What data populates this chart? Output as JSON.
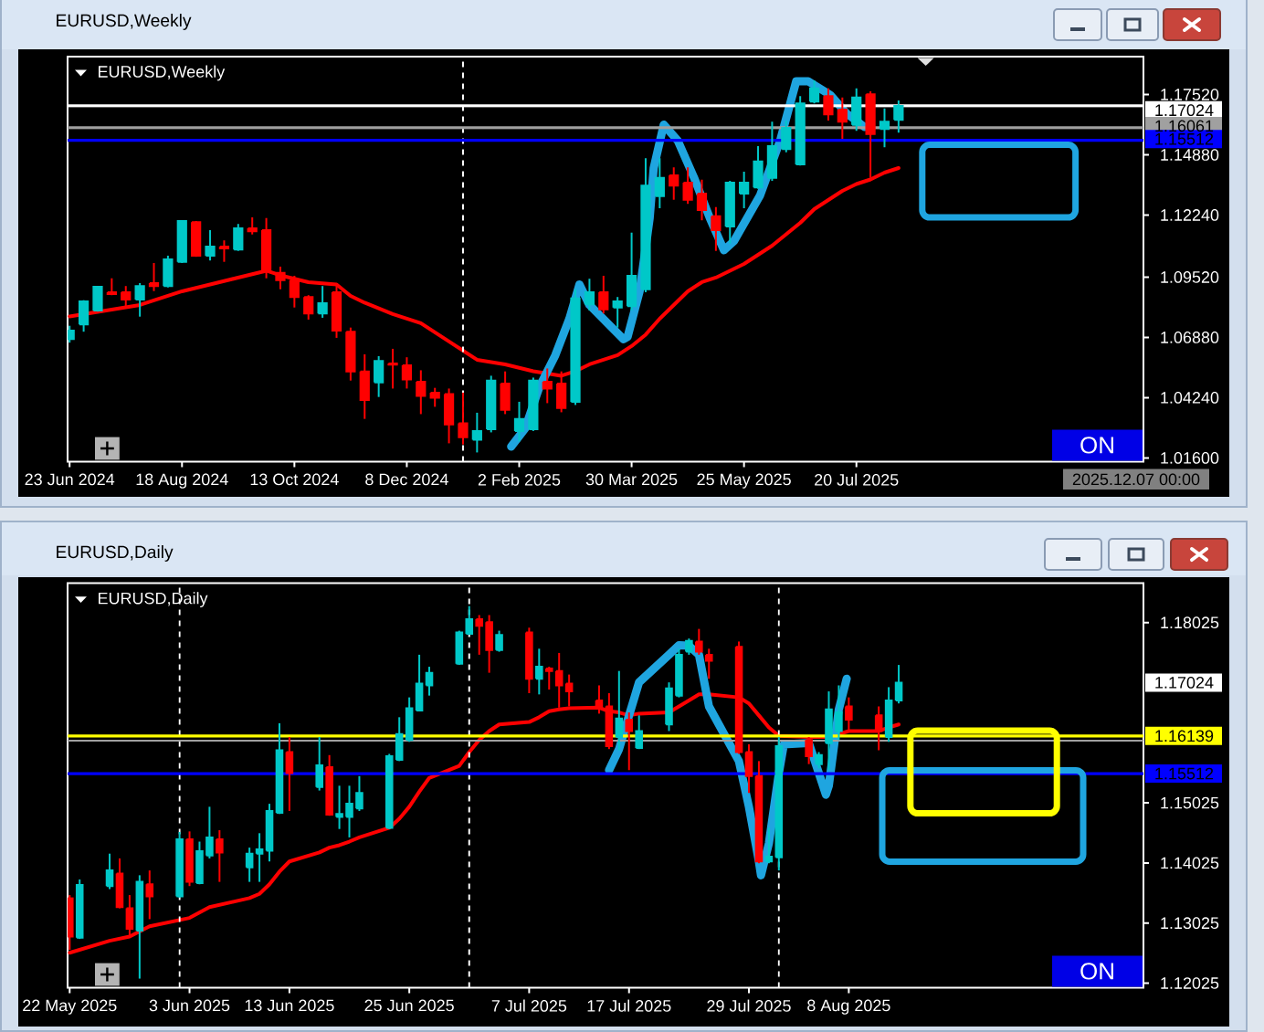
{
  "chart_data": [
    {
      "type": "candlestick",
      "title": "EURUSD,Weekly",
      "subtitle": "EURUSD,Weekly",
      "x": [
        "2024-06-23",
        "2024-06-30",
        "2024-07-07",
        "2024-07-14",
        "2024-07-21",
        "2024-07-28",
        "2024-08-04",
        "2024-08-11",
        "2024-08-18",
        "2024-08-25",
        "2024-09-01",
        "2024-09-08",
        "2024-09-15",
        "2024-09-22",
        "2024-09-29",
        "2024-10-06",
        "2024-10-13",
        "2024-10-20",
        "2024-10-27",
        "2024-11-03",
        "2024-11-10",
        "2024-11-17",
        "2024-11-24",
        "2024-12-01",
        "2024-12-08",
        "2024-12-15",
        "2024-12-22",
        "2024-12-29",
        "2025-01-05",
        "2025-01-12",
        "2025-01-19",
        "2025-01-26",
        "2025-02-02",
        "2025-02-09",
        "2025-02-16",
        "2025-02-23",
        "2025-03-02",
        "2025-03-09",
        "2025-03-16",
        "2025-03-23",
        "2025-03-30",
        "2025-04-06",
        "2025-04-13",
        "2025-04-20",
        "2025-04-27",
        "2025-05-04",
        "2025-05-11",
        "2025-05-18",
        "2025-05-25",
        "2025-06-01",
        "2025-06-08",
        "2025-06-15",
        "2025-06-22",
        "2025-06-29",
        "2025-07-06",
        "2025-07-13",
        "2025-07-20",
        "2025-07-27",
        "2025-08-03",
        "2025-08-10"
      ],
      "ohlc": [
        [
          1.0681,
          1.0739,
          1.0665,
          1.0718
        ],
        [
          1.0745,
          1.0851,
          1.0713,
          1.0846
        ],
        [
          1.0806,
          1.0913,
          1.0801,
          1.091
        ],
        [
          1.0886,
          1.0947,
          1.0873,
          1.0878
        ],
        [
          1.0886,
          1.0913,
          1.0819,
          1.0854
        ],
        [
          1.0854,
          1.0926,
          1.0779,
          1.0913
        ],
        [
          1.0926,
          1.1014,
          1.0891,
          1.0913
        ],
        [
          1.0913,
          1.1046,
          1.0907,
          1.103
        ],
        [
          1.1019,
          1.1201,
          1.1014,
          1.1198
        ],
        [
          1.1193,
          1.1198,
          1.1041,
          1.1046
        ],
        [
          1.1046,
          1.1158,
          1.1025,
          1.1086
        ],
        [
          1.1086,
          1.1113,
          1.1019,
          1.1078
        ],
        [
          1.1073,
          1.1185,
          1.1067,
          1.1166
        ],
        [
          1.1166,
          1.1214,
          1.1139,
          1.1153
        ],
        [
          1.1158,
          1.1211,
          1.0947,
          1.0979
        ],
        [
          1.0971,
          1.0998,
          1.0899,
          1.0939
        ],
        [
          1.0939,
          1.0958,
          1.0819,
          1.0865
        ],
        [
          1.0865,
          1.0873,
          1.0766,
          1.0793
        ],
        [
          1.0793,
          1.0913,
          1.0774,
          1.0838
        ],
        [
          1.0886,
          1.0926,
          1.0686,
          1.0718
        ],
        [
          1.0713,
          1.0731,
          1.0499,
          1.0539
        ],
        [
          1.0539,
          1.0614,
          1.0331,
          1.0414
        ],
        [
          1.0491,
          1.0606,
          1.0427,
          1.0585
        ],
        [
          1.0574,
          1.0638,
          1.0464,
          1.0569
        ],
        [
          1.0566,
          1.0601,
          1.0464,
          1.0504
        ],
        [
          1.0494,
          1.0544,
          1.0352,
          1.0432
        ],
        [
          1.0446,
          1.0467,
          1.0384,
          1.0424
        ],
        [
          1.044,
          1.0464,
          1.0224,
          1.0307
        ],
        [
          1.0312,
          1.0446,
          1.0219,
          1.0251
        ],
        [
          1.024,
          1.0358,
          1.0184,
          1.0278
        ],
        [
          1.0286,
          1.052,
          1.0272,
          1.0499
        ],
        [
          1.0486,
          1.0539,
          1.0352,
          1.0371
        ],
        [
          1.0278,
          1.0406,
          1.0232,
          1.0331
        ],
        [
          1.0286,
          1.0512,
          1.0278,
          1.0499
        ],
        [
          1.0494,
          1.0552,
          1.04,
          1.0464
        ],
        [
          1.0486,
          1.0539,
          1.036,
          1.0379
        ],
        [
          1.0406,
          1.0899,
          1.0392,
          1.0859
        ],
        [
          1.0833,
          1.0945,
          1.0806,
          1.0886
        ],
        [
          1.0886,
          1.0958,
          1.0793,
          1.0811
        ],
        [
          1.0819,
          1.0865,
          1.0731,
          1.0846
        ],
        [
          1.0825,
          1.1147,
          1.0806,
          1.0958
        ],
        [
          1.0899,
          1.1473,
          1.0886,
          1.1353
        ],
        [
          1.1307,
          1.1473,
          1.1254,
          1.1387
        ],
        [
          1.1398,
          1.1433,
          1.1291,
          1.1353
        ],
        [
          1.1366,
          1.1433,
          1.1273,
          1.1291
        ],
        [
          1.1318,
          1.1379,
          1.1201,
          1.1246
        ],
        [
          1.1219,
          1.1259,
          1.1067,
          1.1158
        ],
        [
          1.1174,
          1.1374,
          1.1099,
          1.1366
        ],
        [
          1.1318,
          1.1414,
          1.1254,
          1.1366
        ],
        [
          1.1345,
          1.1526,
          1.1339,
          1.1459
        ],
        [
          1.1387,
          1.1633,
          1.1374,
          1.1526
        ],
        [
          1.1513,
          1.1638,
          1.1499,
          1.1606
        ],
        [
          1.1446,
          1.1745,
          1.1441,
          1.1713
        ],
        [
          1.1721,
          1.1814,
          1.1713,
          1.1779
        ],
        [
          1.1745,
          1.1779,
          1.1638,
          1.1665
        ],
        [
          1.1686,
          1.1739,
          1.1558,
          1.1633
        ],
        [
          1.1619,
          1.1779,
          1.1593,
          1.1739
        ],
        [
          1.1753,
          1.1766,
          1.1387,
          1.1579
        ],
        [
          1.1601,
          1.1691,
          1.1521,
          1.1633
        ],
        [
          1.1641,
          1.1726,
          1.1585,
          1.17024
        ]
      ],
      "colors": [
        "#00c8c8",
        "#00c8c8",
        "#00c8c8",
        "#ff0000",
        "#ff0000",
        "#00c8c8",
        "#ff0000",
        "#00c8c8",
        "#00c8c8",
        "#ff0000",
        "#00c8c8",
        "#ff0000",
        "#00c8c8",
        "#ff0000",
        "#ff0000",
        "#ff0000",
        "#ff0000",
        "#ff0000",
        "#00c8c8",
        "#ff0000",
        "#ff0000",
        "#ff0000",
        "#00c8c8",
        "#ff0000",
        "#ff0000",
        "#ff0000",
        "#ff0000",
        "#ff0000",
        "#ff0000",
        "#00c8c8",
        "#00c8c8",
        "#ff0000",
        "#00c8c8",
        "#00c8c8",
        "#ff0000",
        "#ff0000",
        "#00c8c8",
        "#00c8c8",
        "#ff0000",
        "#00c8c8",
        "#00c8c8",
        "#00c8c8",
        "#00c8c8",
        "#ff0000",
        "#ff0000",
        "#ff0000",
        "#ff0000",
        "#00c8c8",
        "#00c8c8",
        "#00c8c8",
        "#00c8c8",
        "#00c8c8",
        "#00c8c8",
        "#00c8c8",
        "#ff0000",
        "#ff0000",
        "#00c8c8",
        "#ff0000",
        "#00c8c8",
        "#00c8c8"
      ],
      "series": [
        {
          "type": "line",
          "color": "#ff0000",
          "x": [
            "2024-06-23",
            "2024-07-14",
            "2024-07-28",
            "2024-08-11",
            "2024-08-18",
            "2024-09-01",
            "2024-09-15",
            "2024-09-29",
            "2024-10-06",
            "2024-10-20",
            "2024-11-03",
            "2024-11-10",
            "2024-11-17",
            "2024-12-01",
            "2024-12-15",
            "2024-12-29",
            "2025-01-12",
            "2025-01-26",
            "2025-02-09",
            "2025-02-23",
            "2025-03-02",
            "2025-03-09",
            "2025-03-23",
            "2025-03-30",
            "2025-04-06",
            "2025-04-13",
            "2025-04-20",
            "2025-04-27",
            "2025-05-04",
            "2025-05-11",
            "2025-05-18",
            "2025-05-25",
            "2025-06-01",
            "2025-06-08",
            "2025-06-15",
            "2025-06-22",
            "2025-06-29",
            "2025-07-06",
            "2025-07-13",
            "2025-07-20",
            "2025-07-27",
            "2025-08-03",
            "2025-08-10"
          ],
          "values": [
            1.078,
            1.081,
            1.083,
            1.087,
            1.089,
            1.092,
            1.095,
            1.098,
            1.096,
            1.093,
            1.092,
            1.087,
            1.084,
            1.079,
            1.075,
            1.067,
            1.059,
            1.057,
            1.054,
            1.052,
            1.054,
            1.057,
            1.061,
            1.065,
            1.07,
            1.077,
            1.083,
            1.089,
            1.093,
            1.095,
            1.098,
            1.101,
            1.105,
            1.109,
            1.114,
            1.119,
            1.125,
            1.129,
            1.133,
            1.136,
            1.138,
            1.141,
            1.143
          ]
        },
        {
          "type": "line",
          "color": "#1fa5e0",
          "x": [
            "2025-01-29",
            "2025-02-05",
            "2025-02-12",
            "2025-02-20",
            "2025-02-27",
            "2025-03-04",
            "2025-03-09",
            "2025-03-18",
            "2025-03-26",
            "2025-03-28",
            "2025-04-03",
            "2025-04-08",
            "2025-04-10",
            "2025-04-15",
            "2025-04-22",
            "2025-04-30",
            "2025-05-08",
            "2025-05-15",
            "2025-05-20",
            "2025-06-02",
            "2025-06-12",
            "2025-06-20",
            "2025-06-26",
            "2025-07-07",
            "2025-07-15",
            "2025-07-24"
          ],
          "values": [
            1.021,
            1.029,
            1.047,
            1.061,
            1.077,
            1.092,
            1.083,
            1.075,
            1.068,
            1.069,
            1.089,
            1.121,
            1.143,
            1.162,
            1.155,
            1.139,
            1.121,
            1.107,
            1.111,
            1.131,
            1.155,
            1.181,
            1.181,
            1.175,
            1.167,
            1.161
          ]
        }
      ],
      "xlim": [
        "2024-06-22",
        "2025-12-10"
      ],
      "xticks": [
        {
          "value": "2024-06-23",
          "label": "23 Jun 2024"
        },
        {
          "value": "2024-08-18",
          "label": "18 Aug 2024"
        },
        {
          "value": "2024-10-13",
          "label": "13 Oct 2024"
        },
        {
          "value": "2024-12-08",
          "label": "8 Dec 2024"
        },
        {
          "value": "2025-02-02",
          "label": "2 Feb 2025"
        },
        {
          "value": "2025-03-30",
          "label": "30 Mar 2025"
        },
        {
          "value": "2025-05-25",
          "label": "25 May 2025"
        },
        {
          "value": "2025-07-20",
          "label": "20 Jul 2025"
        }
      ],
      "ylim": [
        1.0144,
        1.1918
      ],
      "yticks": [
        {
          "value": 1.1752,
          "label": "1.17520"
        },
        {
          "value": 1.1488,
          "label": "1.14880"
        },
        {
          "value": 1.1224,
          "label": "1.12240"
        },
        {
          "value": 1.0952,
          "label": "1.09520"
        },
        {
          "value": 1.0688,
          "label": "1.06880"
        },
        {
          "value": 1.0424,
          "label": "1.04240"
        },
        {
          "value": 1.016,
          "label": "1.01600"
        }
      ],
      "ref_lines": [
        {
          "axis": "x",
          "value": "2025-01-05",
          "color": "#ffffff",
          "line_style": "dashed"
        },
        {
          "axis": "y",
          "value": 1.17024,
          "label": "1.17024",
          "color": "#ffffff"
        },
        {
          "axis": "y",
          "value": 1.16061,
          "label": "1.16061",
          "color": "#a0a0a0"
        },
        {
          "axis": "y",
          "value": 1.15512,
          "label": "1.15512",
          "color": "#0000ff"
        }
      ],
      "annotations": [
        "ON",
        "2025.12.07 00:00"
      ]
    },
    {
      "type": "candlestick",
      "title": "EURUSD,Daily",
      "subtitle": "EURUSD,Daily",
      "x": [
        "2025-05-22",
        "2025-05-23",
        "2025-05-26",
        "2025-05-27",
        "2025-05-28",
        "2025-05-29",
        "2025-05-30",
        "2025-06-02",
        "2025-06-03",
        "2025-06-04",
        "2025-06-05",
        "2025-06-06",
        "2025-06-09",
        "2025-06-10",
        "2025-06-11",
        "2025-06-12",
        "2025-06-13",
        "2025-06-16",
        "2025-06-17",
        "2025-06-18",
        "2025-06-19",
        "2025-06-20",
        "2025-06-23",
        "2025-06-24",
        "2025-06-25",
        "2025-06-26",
        "2025-06-27",
        "2025-06-30",
        "2025-07-01",
        "2025-07-02",
        "2025-07-03",
        "2025-07-04",
        "2025-07-07",
        "2025-07-08",
        "2025-07-09",
        "2025-07-10",
        "2025-07-11",
        "2025-07-14",
        "2025-07-15",
        "2025-07-16",
        "2025-07-17",
        "2025-07-18",
        "2025-07-21",
        "2025-07-22",
        "2025-07-23",
        "2025-07-24",
        "2025-07-25",
        "2025-07-28",
        "2025-07-29",
        "2025-07-30",
        "2025-07-31",
        "2025-08-01",
        "2025-08-04",
        "2025-08-05",
        "2025-08-06",
        "2025-08-07",
        "2025-08-08",
        "2025-08-11",
        "2025-08-12",
        "2025-08-13"
      ],
      "ohlc": [
        [
          1.1344,
          1.1349,
          1.1258,
          1.128
        ],
        [
          1.1278,
          1.1375,
          1.1276,
          1.1366
        ],
        [
          1.1364,
          1.1418,
          1.1359,
          1.139
        ],
        [
          1.1385,
          1.141,
          1.1327,
          1.1329
        ],
        [
          1.1327,
          1.1349,
          1.128,
          1.1293
        ],
        [
          1.129,
          1.1382,
          1.121,
          1.1371
        ],
        [
          1.1367,
          1.139,
          1.1309,
          1.1347
        ],
        [
          1.1347,
          1.1454,
          1.1345,
          1.1442
        ],
        [
          1.1442,
          1.1455,
          1.1364,
          1.1371
        ],
        [
          1.1369,
          1.1438,
          1.1367,
          1.1422
        ],
        [
          1.1415,
          1.1496,
          1.141,
          1.1445
        ],
        [
          1.1442,
          1.1457,
          1.1371,
          1.142
        ],
        [
          1.1395,
          1.1428,
          1.1371,
          1.1418
        ],
        [
          1.1418,
          1.1452,
          1.1371,
          1.1425
        ],
        [
          1.1423,
          1.1501,
          1.1405,
          1.1489
        ],
        [
          1.1486,
          1.1635,
          1.1484,
          1.159
        ],
        [
          1.1587,
          1.1612,
          1.1489,
          1.1552
        ],
        [
          1.1529,
          1.1612,
          1.1523,
          1.1565
        ],
        [
          1.1562,
          1.1582,
          1.1481,
          1.1483
        ],
        [
          1.1479,
          1.1531,
          1.1459,
          1.1484
        ],
        [
          1.1479,
          1.1531,
          1.1445,
          1.1501
        ],
        [
          1.1493,
          1.1547,
          1.1489,
          1.1519
        ],
        [
          1.1461,
          1.1584,
          1.1459,
          1.158
        ],
        [
          1.1574,
          1.1645,
          1.1572,
          1.1617
        ],
        [
          1.1607,
          1.1678,
          1.1604,
          1.166
        ],
        [
          1.1656,
          1.1749,
          1.1655,
          1.1701
        ],
        [
          1.1698,
          1.1729,
          1.1681,
          1.1719
        ],
        [
          1.1734,
          1.1789,
          1.1732,
          1.1786
        ],
        [
          1.1784,
          1.183,
          1.1782,
          1.1808
        ],
        [
          1.1808,
          1.1815,
          1.1749,
          1.1797
        ],
        [
          1.1803,
          1.1815,
          1.1719,
          1.1757
        ],
        [
          1.1757,
          1.1789,
          1.1754,
          1.1782
        ],
        [
          1.1786,
          1.1794,
          1.1685,
          1.1709
        ],
        [
          1.1709,
          1.1759,
          1.1683,
          1.1729
        ],
        [
          1.1726,
          1.1729,
          1.1691,
          1.1722
        ],
        [
          1.1722,
          1.1752,
          1.1661,
          1.1698
        ],
        [
          1.1701,
          1.1716,
          1.1663,
          1.1688
        ],
        [
          1.1673,
          1.1698,
          1.1651,
          1.166
        ],
        [
          1.1663,
          1.1685,
          1.1592,
          1.1597
        ],
        [
          1.1612,
          1.1722,
          1.159,
          1.1643
        ],
        [
          1.1641,
          1.1653,
          1.1557,
          1.1622
        ],
        [
          1.1594,
          1.1648,
          1.1592,
          1.1622
        ],
        [
          1.1633,
          1.1703,
          1.1622,
          1.1693
        ],
        [
          1.1681,
          1.1759,
          1.1678,
          1.1749
        ],
        [
          1.1754,
          1.1776,
          1.1749,
          1.1772
        ],
        [
          1.1771,
          1.1792,
          1.1749,
          1.1754
        ],
        [
          1.1749,
          1.1759,
          1.1709,
          1.1739
        ],
        [
          1.1762,
          1.1771,
          1.1584,
          1.1587
        ],
        [
          1.1587,
          1.16,
          1.1519,
          1.1547
        ],
        [
          1.1547,
          1.1572,
          1.1402,
          1.1405
        ],
        [
          1.1405,
          1.1461,
          1.1402,
          1.1413
        ],
        [
          1.1412,
          1.1612,
          1.139,
          1.1597
        ],
        [
          1.1607,
          1.1612,
          1.1567,
          1.158
        ],
        [
          1.1567,
          1.1587,
          1.156,
          1.1582
        ],
        [
          1.1602,
          1.1688,
          1.1557,
          1.1658
        ],
        [
          1.1622,
          1.1698,
          1.1607,
          1.1653
        ],
        [
          1.1663,
          1.1678,
          1.1622,
          1.1641
        ],
        [
          1.1648,
          1.1663,
          1.159,
          1.1622
        ],
        [
          1.1612,
          1.1695,
          1.1604,
          1.1673
        ],
        [
          1.1673,
          1.1732,
          1.1668,
          1.17024
        ]
      ],
      "colors": [
        "#ff0000",
        "#00c8c8",
        "#00c8c8",
        "#ff0000",
        "#ff0000",
        "#00c8c8",
        "#ff0000",
        "#00c8c8",
        "#ff0000",
        "#00c8c8",
        "#00c8c8",
        "#ff0000",
        "#00c8c8",
        "#00c8c8",
        "#00c8c8",
        "#00c8c8",
        "#ff0000",
        "#00c8c8",
        "#ff0000",
        "#00c8c8",
        "#00c8c8",
        "#00c8c8",
        "#00c8c8",
        "#00c8c8",
        "#00c8c8",
        "#00c8c8",
        "#00c8c8",
        "#00c8c8",
        "#00c8c8",
        "#ff0000",
        "#ff0000",
        "#00c8c8",
        "#ff0000",
        "#00c8c8",
        "#ff0000",
        "#ff0000",
        "#ff0000",
        "#ff0000",
        "#ff0000",
        "#00c8c8",
        "#ff0000",
        "#00c8c8",
        "#00c8c8",
        "#00c8c8",
        "#00c8c8",
        "#ff0000",
        "#ff0000",
        "#ff0000",
        "#ff0000",
        "#ff0000",
        "#00c8c8",
        "#00c8c8",
        "#ff0000",
        "#00c8c8",
        "#00c8c8",
        "#00c8c8",
        "#ff0000",
        "#ff0000",
        "#00c8c8",
        "#00c8c8"
      ],
      "series": [
        {
          "type": "line",
          "color": "#ff0000",
          "x": [
            "2025-05-22",
            "2025-05-26",
            "2025-05-28",
            "2025-05-30",
            "2025-06-03",
            "2025-06-05",
            "2025-06-09",
            "2025-06-10",
            "2025-06-11",
            "2025-06-12",
            "2025-06-13",
            "2025-06-16",
            "2025-06-17",
            "2025-06-18",
            "2025-06-19",
            "2025-06-20",
            "2025-06-23",
            "2025-06-24",
            "2025-06-25",
            "2025-06-26",
            "2025-06-27",
            "2025-06-30",
            "2025-07-01",
            "2025-07-02",
            "2025-07-03",
            "2025-07-04",
            "2025-07-07",
            "2025-07-08",
            "2025-07-09",
            "2025-07-10",
            "2025-07-11",
            "2025-07-14",
            "2025-07-15",
            "2025-07-16",
            "2025-07-17",
            "2025-07-18",
            "2025-07-21",
            "2025-07-22",
            "2025-07-23",
            "2025-07-24",
            "2025-07-25",
            "2025-07-28",
            "2025-07-29",
            "2025-07-30",
            "2025-07-31",
            "2025-08-01",
            "2025-08-04",
            "2025-08-05",
            "2025-08-06",
            "2025-08-07",
            "2025-08-08",
            "2025-08-11",
            "2025-08-12",
            "2025-08-13"
          ],
          "values": [
            1.1253,
            1.1273,
            1.128,
            1.1297,
            1.1311,
            1.1329,
            1.1344,
            1.1351,
            1.1367,
            1.1388,
            1.1405,
            1.142,
            1.1428,
            1.1432,
            1.1438,
            1.1445,
            1.1461,
            1.1476,
            1.1496,
            1.1521,
            1.1544,
            1.1564,
            1.1587,
            1.1607,
            1.1622,
            1.1633,
            1.1637,
            1.1645,
            1.1655,
            1.1658,
            1.166,
            1.1661,
            1.1655,
            1.1653,
            1.1648,
            1.1651,
            1.1653,
            1.1663,
            1.1673,
            1.1683,
            1.1683,
            1.1678,
            1.1668,
            1.1648,
            1.1628,
            1.1614,
            1.1612,
            1.1612,
            1.1612,
            1.1617,
            1.1622,
            1.1622,
            1.1628,
            1.1633
          ]
        },
        {
          "type": "line",
          "color": "#1fa5e0",
          "x": [
            "2025-07-15",
            "2025-07-16",
            "2025-07-17",
            "2025-07-18",
            "2025-07-21",
            "2025-07-22",
            "2025-07-23",
            "2025-07-24",
            "2025-07-25",
            "2025-07-28",
            "2025-07-29",
            "2025-07-30",
            "2025-07-30T05:00",
            "2025-07-31",
            "2025-08-01",
            "2025-08-01T12:00",
            "2025-08-04",
            "2025-08-05",
            "2025-08-05T17:00",
            "2025-08-06",
            "2025-08-07",
            "2025-08-07T19:00"
          ],
          "values": [
            1.1557,
            1.1592,
            1.1648,
            1.1703,
            1.1749,
            1.1765,
            1.1764,
            1.1749,
            1.1663,
            1.1572,
            1.1496,
            1.1405,
            1.1382,
            1.1435,
            1.1552,
            1.16,
            1.1602,
            1.1552,
            1.1516,
            1.1531,
            1.1658,
            1.1709
          ]
        }
      ],
      "xlim": [
        "2025-05-21T19:00",
        "2025-09-06T12:00"
      ],
      "xticks": [
        {
          "value": "2025-05-22",
          "label": "22 May 2025"
        },
        {
          "value": "2025-06-03",
          "label": "3 Jun 2025"
        },
        {
          "value": "2025-06-13",
          "label": "13 Jun 2025"
        },
        {
          "value": "2025-06-25",
          "label": "25 Jun 2025"
        },
        {
          "value": "2025-07-07",
          "label": "7 Jul 2025"
        },
        {
          "value": "2025-07-17",
          "label": "17 Jul 2025"
        },
        {
          "value": "2025-07-29",
          "label": "29 Jul 2025"
        },
        {
          "value": "2025-08-08",
          "label": "8 Aug 2025"
        }
      ],
      "ylim": [
        1.1195,
        1.1868
      ],
      "yticks": [
        1.18025,
        1.15025,
        1.14025,
        1.13025,
        1.12025
      ],
      "ref_lines": [
        {
          "axis": "x",
          "value": "2025-06-02",
          "color": "#ffffff",
          "line_style": "dashed"
        },
        {
          "axis": "x",
          "value": "2025-07-01",
          "color": "#ffffff",
          "line_style": "dashed"
        },
        {
          "axis": "x",
          "value": "2025-08-01",
          "color": "#ffffff",
          "line_style": "dashed"
        },
        {
          "axis": "y",
          "value": 1.16139,
          "label": "1.16139",
          "color": "#ffff00"
        },
        {
          "axis": "y",
          "value": 1.15512,
          "label": "1.15512",
          "color": "#0000ff"
        },
        {
          "axis": "y",
          "value": 1.16061,
          "color": "#a0a0a0"
        }
      ],
      "annotations": [
        "ON",
        "1.17024"
      ]
    }
  ]
}
